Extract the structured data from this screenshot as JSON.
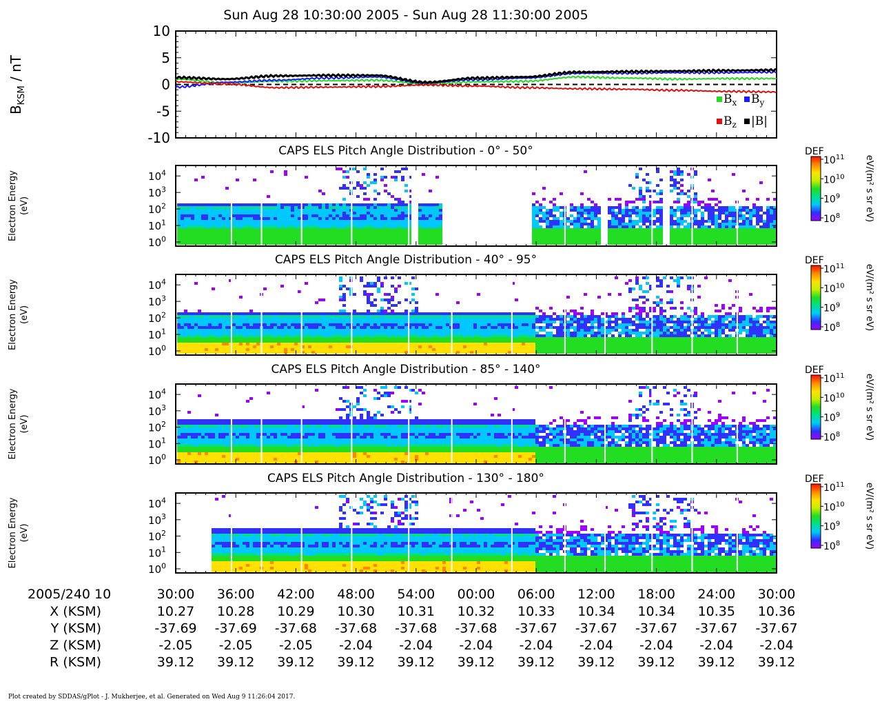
{
  "title": "Sun Aug 28 10:30:00 2005 - Sun Aug 28 11:30:00 2005",
  "footer": "Plot created by SDDAS/gPlot - J. Mukherjee, et al.  Generated on Wed Aug  9 11:26:04 2017.",
  "colors": {
    "bx": "#22dd22",
    "by": "#1a1aff",
    "bz": "#e01010",
    "bmag": "#000000",
    "colorbar": [
      "#a000ff",
      "#3030ff",
      "#00c8ff",
      "#00e08a",
      "#22dd22",
      "#c8ee00",
      "#ffe000",
      "#ff8800",
      "#ff1000"
    ]
  },
  "chart_data": [
    {
      "type": "line",
      "ylabel_main": "B",
      "ylabel_sub": "KSM",
      "ylabel_unit": " / nT",
      "ylim": [
        -10,
        10
      ],
      "yticks": [
        "10",
        "5",
        "0",
        "-5",
        "-10"
      ],
      "zero_line": "dashed",
      "x_minutes": [
        0,
        5,
        10,
        15,
        20,
        25,
        30,
        35,
        40,
        45,
        50,
        55,
        60
      ],
      "series": [
        {
          "name": "B",
          "sub": "x",
          "color_key": "bx",
          "values": [
            1.0,
            0.3,
            0.6,
            0.7,
            0.8,
            0.1,
            0.5,
            0.6,
            1.4,
            1.2,
            1.0,
            1.1,
            1.1
          ]
        },
        {
          "name": "B",
          "sub": "y",
          "color_key": "by",
          "values": [
            -0.5,
            0.4,
            0.8,
            1.2,
            1.4,
            0.3,
            0.9,
            1.2,
            2.1,
            2.1,
            2.2,
            2.2,
            2.3
          ]
        },
        {
          "name": "B",
          "sub": "z",
          "color_key": "bz",
          "values": [
            0.5,
            0.1,
            -0.6,
            -0.5,
            -0.4,
            -0.1,
            -0.3,
            -0.6,
            -0.8,
            -0.9,
            -1.1,
            -1.3,
            -1.4
          ]
        },
        {
          "name": "|B|",
          "sub": "",
          "color_key": "bmag",
          "values": [
            1.3,
            1.0,
            1.6,
            1.7,
            1.7,
            0.4,
            1.2,
            1.4,
            2.3,
            2.4,
            2.5,
            2.6,
            2.7
          ]
        }
      ]
    },
    {
      "type": "heatmap",
      "title": "CAPS ELS Pitch Angle Distribution - 0° - 50°",
      "ylabel": [
        "Electron Energy",
        "(eV)"
      ],
      "yticks": [
        "10",
        "10",
        "10",
        "10",
        "10"
      ],
      "ytick_exponents": [
        "4",
        "3",
        "2",
        "1",
        "0"
      ],
      "gaps_minutes": [
        [
          26.5,
          35.5
        ],
        [
          23.5,
          24.2
        ],
        [
          31.8,
          32.2
        ],
        [
          42.3,
          42.8
        ],
        [
          48.5,
          49.0
        ]
      ],
      "colorbar": {
        "label": "DEF",
        "unit": "eV/(m² s sr eV)",
        "ticks": [
          "10",
          "10",
          "10",
          "10"
        ],
        "exponents": [
          "11",
          "10",
          "9",
          "8"
        ],
        "range": [
          8,
          11
        ]
      }
    },
    {
      "type": "heatmap",
      "title": "CAPS ELS Pitch Angle Distribution - 40° - 95°",
      "ylabel": [
        "Electron Energy",
        "(eV)"
      ],
      "yticks": [
        "10",
        "10",
        "10",
        "10",
        "10"
      ],
      "ytick_exponents": [
        "4",
        "3",
        "2",
        "1",
        "0"
      ],
      "gaps_minutes": [],
      "colorbar": {
        "label": "DEF",
        "unit": "eV/(m² s sr eV)",
        "ticks": [
          "10",
          "10",
          "10",
          "10"
        ],
        "exponents": [
          "11",
          "10",
          "9",
          "8"
        ],
        "range": [
          8,
          11
        ]
      }
    },
    {
      "type": "heatmap",
      "title": "CAPS ELS Pitch Angle Distribution - 85° - 140°",
      "ylabel": [
        "Electron Energy",
        "(eV)"
      ],
      "yticks": [
        "10",
        "10",
        "10",
        "10",
        "10"
      ],
      "ytick_exponents": [
        "4",
        "3",
        "2",
        "1",
        "0"
      ],
      "gaps_minutes": [],
      "colorbar": {
        "label": "DEF",
        "unit": "eV/(m² s sr eV)",
        "ticks": [
          "10",
          "10",
          "10",
          "10"
        ],
        "exponents": [
          "11",
          "10",
          "9",
          "8"
        ],
        "range": [
          8,
          11
        ]
      }
    },
    {
      "type": "heatmap",
      "title": "CAPS ELS Pitch Angle Distribution - 130° - 180°",
      "ylabel": [
        "Electron Energy",
        "(eV)"
      ],
      "yticks": [
        "10",
        "10",
        "10",
        "10",
        "10"
      ],
      "ytick_exponents": [
        "4",
        "3",
        "2",
        "1",
        "0"
      ],
      "gaps_minutes": [
        [
          0,
          3.5
        ]
      ],
      "colorbar": {
        "label": "DEF",
        "unit": "eV/(m² s sr eV)",
        "ticks": [
          "10",
          "10",
          "10",
          "10"
        ],
        "exponents": [
          "11",
          "10",
          "9",
          "8"
        ],
        "range": [
          8,
          11
        ]
      }
    }
  ],
  "time_axis": {
    "label": "2005/240 10",
    "ticks": [
      "30:00",
      "36:00",
      "42:00",
      "48:00",
      "54:00",
      "00:00",
      "06:00",
      "12:00",
      "18:00",
      "24:00",
      "30:00"
    ],
    "rows": [
      {
        "label": "X (KSM)",
        "values": [
          "10.27",
          "10.28",
          "10.29",
          "10.30",
          "10.31",
          "10.32",
          "10.33",
          "10.34",
          "10.34",
          "10.35",
          "10.36"
        ]
      },
      {
        "label": "Y (KSM)",
        "values": [
          "-37.69",
          "-37.69",
          "-37.68",
          "-37.68",
          "-37.68",
          "-37.68",
          "-37.67",
          "-37.67",
          "-37.67",
          "-37.67",
          "-37.67"
        ]
      },
      {
        "label": "Z (KSM)",
        "values": [
          "-2.05",
          "-2.05",
          "-2.05",
          "-2.04",
          "-2.04",
          "-2.04",
          "-2.04",
          "-2.04",
          "-2.04",
          "-2.04",
          "-2.04"
        ]
      },
      {
        "label": "R (KSM)",
        "values": [
          "39.12",
          "39.12",
          "39.12",
          "39.12",
          "39.12",
          "39.12",
          "39.12",
          "39.12",
          "39.12",
          "39.12",
          "39.12"
        ]
      }
    ]
  }
}
